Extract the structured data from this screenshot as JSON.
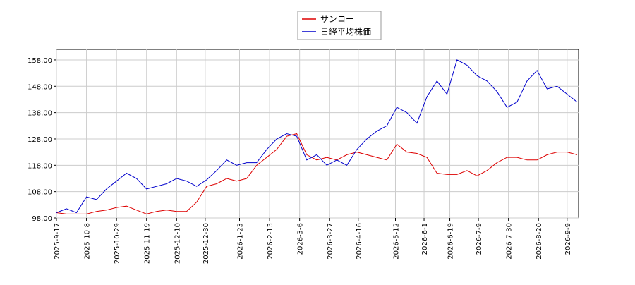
{
  "chart_data": {
    "type": "line",
    "x": [
      "2025-9-17",
      "2025-9-24",
      "2025-10-1",
      "2025-10-8",
      "2025-10-15",
      "2025-10-22",
      "2025-10-29",
      "2025-11-5",
      "2025-11-12",
      "2025-11-19",
      "2025-11-26",
      "2025-12-3",
      "2025-12-10",
      "2025-12-17",
      "2025-12-24",
      "2025-12-31",
      "2026-1-7",
      "2026-1-14",
      "2026-1-21",
      "2026-1-28",
      "2026-2-4",
      "2026-2-11",
      "2026-2-18",
      "2026-2-25",
      "2026-3-4",
      "2026-3-11",
      "2026-3-18",
      "2026-3-25",
      "2026-4-1",
      "2026-4-8",
      "2026-4-15",
      "2026-4-22",
      "2026-4-29",
      "2026-5-6",
      "2026-5-13",
      "2026-5-20",
      "2026-5-27",
      "2026-6-3",
      "2026-6-10",
      "2026-6-17",
      "2026-6-24",
      "2026-7-1",
      "2026-7-8",
      "2026-7-15",
      "2026-7-22",
      "2026-7-29",
      "2026-8-5",
      "2026-8-12",
      "2026-8-19",
      "2026-8-26",
      "2026-9-2",
      "2026-9-9",
      "2026-9-16"
    ],
    "series": [
      {
        "name": "サンコー",
        "color": "#dd0000",
        "values": [
          100,
          99.5,
          99.5,
          99.5,
          100.5,
          101,
          102,
          102.5,
          101,
          99.5,
          100.5,
          101,
          100.5,
          100.5,
          104,
          110,
          111,
          113,
          112,
          113,
          118,
          121,
          124,
          129,
          130,
          122,
          120,
          121,
          120,
          122,
          123,
          122,
          121,
          120,
          126,
          123,
          122.5,
          121,
          115,
          114.5,
          114.5,
          116,
          114,
          116,
          119,
          121,
          121,
          120,
          120,
          122,
          123,
          123,
          122
        ]
      },
      {
        "name": "日経平均株価",
        "color": "#0000cc",
        "values": [
          100,
          101.5,
          100,
          106,
          105,
          109,
          112,
          115,
          113,
          109,
          110,
          111,
          113,
          112,
          110,
          112.5,
          116,
          120,
          118,
          119,
          119,
          124,
          128,
          130,
          129,
          120,
          122,
          118,
          120,
          118,
          124,
          128,
          131,
          133,
          140,
          138,
          134,
          144,
          150,
          145,
          158,
          156,
          152,
          150,
          146,
          140,
          142,
          150,
          154,
          147,
          148,
          145,
          142
        ]
      }
    ],
    "xlim": [
      "2025-9-17",
      "2026-9-17"
    ],
    "xticks": [
      "2025-9-17",
      "2025-10-8",
      "2025-10-29",
      "2025-11-19",
      "2025-12-10",
      "2025-12-30",
      "2026-1-23",
      "2026-2-13",
      "2026-3-6",
      "2026-3-27",
      "2026-4-16",
      "2026-5-12",
      "2026-6-1",
      "2026-6-19",
      "2026-7-9",
      "2026-7-30",
      "2026-8-20",
      "2026-9-9"
    ],
    "ylim": [
      98,
      162
    ],
    "yticks": [
      {
        "value": 98,
        "label": "98.00"
      },
      {
        "value": 108,
        "label": "108.00"
      },
      {
        "value": 118,
        "label": "118.00"
      },
      {
        "value": 128,
        "label": "128.00"
      },
      {
        "value": 138,
        "label": "138.00"
      },
      {
        "value": 148,
        "label": "148.00"
      },
      {
        "value": 158,
        "label": "158.00"
      }
    ],
    "grid": true
  }
}
